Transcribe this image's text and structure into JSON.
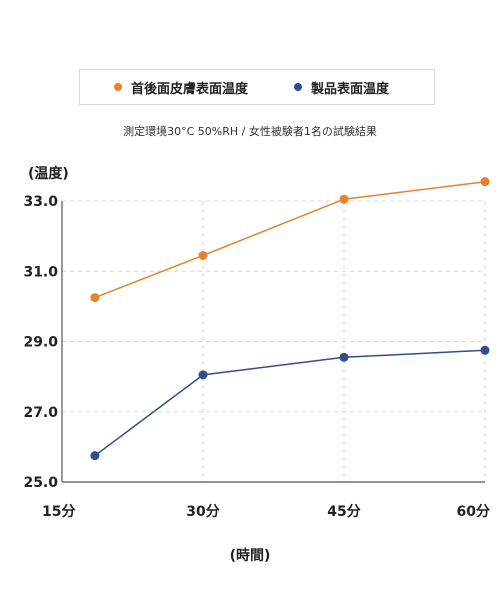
{
  "chart_data": {
    "type": "line",
    "subtitle": "測定環境30°C 50%RH / 女性被験者1名の試験結果",
    "ylabel": "(温度)",
    "xlabel": "(時間)",
    "categories": [
      "15分",
      "30分",
      "45分",
      "60分"
    ],
    "ylim": [
      25.0,
      33.0
    ],
    "yticks": [
      "25.0",
      "27.0",
      "29.0",
      "31.0",
      "33.0"
    ],
    "grid": true,
    "legend_position": "top",
    "series": [
      {
        "name": "首後面皮膚表面温度",
        "color": "#e8822c",
        "points": [
          {
            "x": 18.5,
            "y": 30.25
          },
          {
            "x": 30,
            "y": 31.45
          },
          {
            "x": 45,
            "y": 33.05
          },
          {
            "x": 60,
            "y": 33.55
          }
        ]
      },
      {
        "name": "製品表面温度",
        "color": "#2f4f8a",
        "points": [
          {
            "x": 18.5,
            "y": 25.75
          },
          {
            "x": 30,
            "y": 28.05
          },
          {
            "x": 45,
            "y": 28.55
          },
          {
            "x": 60,
            "y": 28.75
          }
        ]
      }
    ]
  }
}
